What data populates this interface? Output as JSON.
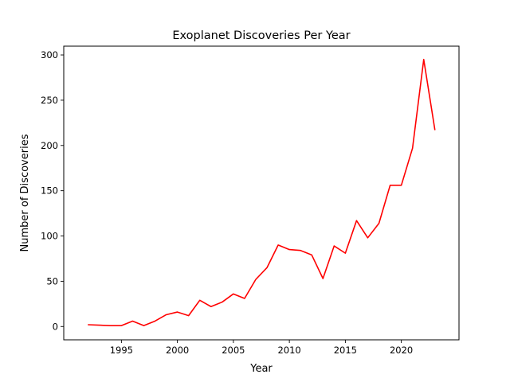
{
  "chart_data": {
    "type": "line",
    "title": "Exoplanet Discoveries Per Year",
    "xlabel": "Year",
    "ylabel": "Number of Discoveries",
    "x": [
      1992,
      1993,
      1994,
      1995,
      1996,
      1997,
      1998,
      1999,
      2000,
      2001,
      2002,
      2003,
      2004,
      2005,
      2006,
      2007,
      2008,
      2009,
      2010,
      2011,
      2012,
      2013,
      2014,
      2015,
      2016,
      2017,
      2018,
      2019,
      2020,
      2021,
      2022,
      2023
    ],
    "series": [
      {
        "color": "#ff0000",
        "values": [
          2,
          1.5,
          1,
          1,
          6,
          1,
          6,
          13,
          16,
          12,
          29,
          22,
          27,
          36,
          31,
          52,
          65,
          90,
          85,
          84,
          79,
          53,
          89,
          81,
          117,
          98,
          114,
          156,
          156,
          197,
          295,
          217
        ]
      }
    ],
    "xlim": [
      1989.85,
      2025.15
    ],
    "ylim": [
      -14.7,
      309.7
    ],
    "xticks": [
      1995,
      2000,
      2005,
      2010,
      2015,
      2020
    ],
    "yticks": [
      0,
      50,
      100,
      150,
      200,
      250,
      300
    ],
    "grid": false,
    "legend": false
  }
}
